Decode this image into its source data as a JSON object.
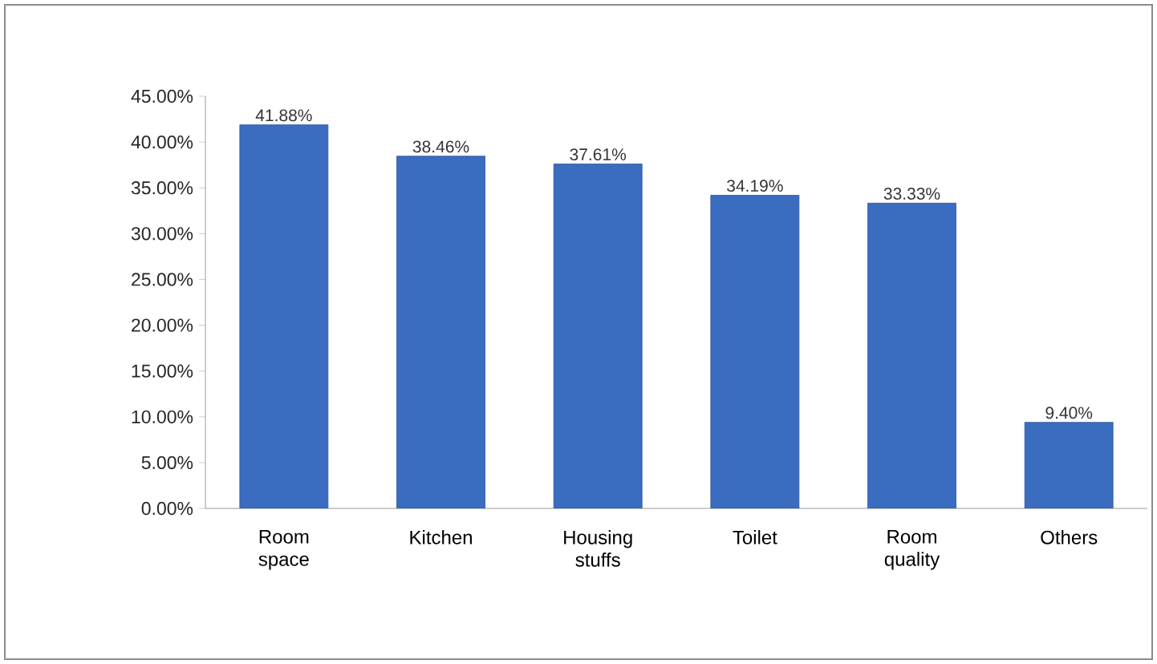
{
  "chart_data": {
    "type": "bar",
    "categories": [
      "Room space",
      "Kitchen",
      "Housing stuffs",
      "Toilet",
      "Room quality",
      "Others"
    ],
    "values": [
      41.88,
      38.46,
      37.61,
      34.19,
      33.33,
      9.4
    ],
    "value_labels": [
      "41.88%",
      "38.46%",
      "37.61%",
      "34.19%",
      "33.33%",
      "9.40%"
    ],
    "color": "#3a6cc0",
    "ylim": [
      0,
      45
    ],
    "yticks": [
      {
        "value": 0,
        "label": "0.00%"
      },
      {
        "value": 5,
        "label": "5.00%"
      },
      {
        "value": 10,
        "label": "10.00%"
      },
      {
        "value": 15,
        "label": "15.00%"
      },
      {
        "value": 20,
        "label": "20.00%"
      },
      {
        "value": 25,
        "label": "25.00%"
      },
      {
        "value": 30,
        "label": "30.00%"
      },
      {
        "value": 35,
        "label": "35.00%"
      },
      {
        "value": 40,
        "label": "40.00%"
      },
      {
        "value": 45,
        "label": "45.00%"
      }
    ],
    "grid": false
  }
}
